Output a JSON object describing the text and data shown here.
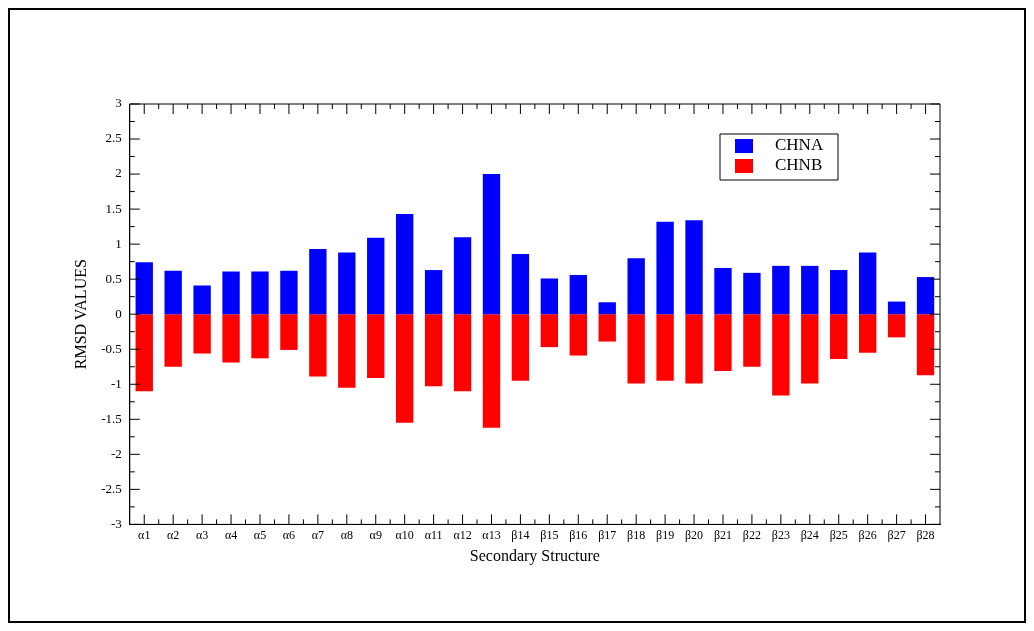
{
  "chart_data": {
    "type": "bar",
    "xlabel": "Secondary Structure",
    "ylabel": "RMSD VALUES",
    "categories": [
      "α1",
      "α2",
      "α3",
      "α4",
      "α5",
      "α6",
      "α7",
      "α8",
      "α9",
      "α10",
      "α11",
      "α12",
      "α13",
      "β14",
      "β15",
      "β16",
      "β17",
      "β18",
      "β19",
      "β20",
      "β21",
      "β22",
      "β23",
      "β24",
      "β25",
      "β26",
      "β27",
      "β28"
    ],
    "series": [
      {
        "name": "CHNA",
        "color": "#0000ff",
        "values": [
          0.74,
          0.62,
          0.41,
          0.61,
          0.61,
          0.62,
          0.93,
          0.88,
          1.09,
          1.43,
          0.63,
          1.1,
          2.0,
          0.86,
          0.51,
          0.56,
          0.17,
          0.8,
          1.32,
          1.34,
          0.66,
          0.59,
          0.69,
          0.69,
          0.63,
          0.88,
          0.18,
          0.53
        ]
      },
      {
        "name": "CHNB",
        "color": "#ff0000",
        "values": [
          -1.1,
          -0.75,
          -0.56,
          -0.69,
          -0.63,
          -0.51,
          -0.89,
          -1.05,
          -0.91,
          -1.55,
          -1.03,
          -1.1,
          -1.62,
          -0.95,
          -0.47,
          -0.59,
          -0.39,
          -0.99,
          -0.95,
          -0.99,
          -0.81,
          -0.75,
          -1.16,
          -0.99,
          -0.64,
          -0.55,
          -0.33,
          -0.87
        ]
      }
    ],
    "stacked": true,
    "ylim": [
      -3,
      3
    ],
    "yticks": [
      -3,
      -2.5,
      -2,
      -1.5,
      -1,
      -0.5,
      0,
      0.5,
      1,
      1.5,
      2,
      2.5,
      3
    ],
    "grid": false,
    "legend": "top right"
  }
}
